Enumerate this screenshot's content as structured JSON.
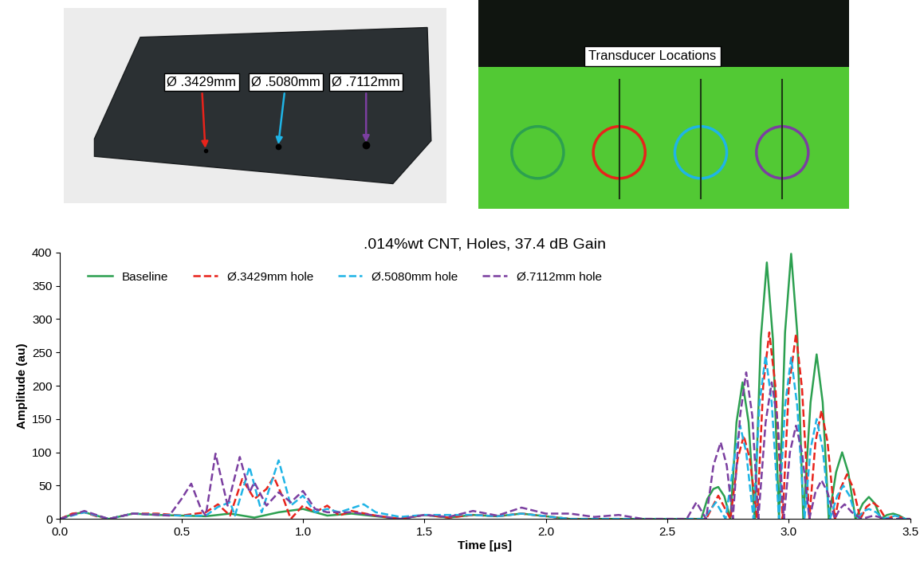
{
  "chart_data": {
    "type": "line",
    "title": ".014%wt CNT, Holes, 37.4 dB Gain",
    "x_label": "Time [μs]",
    "y_label": "Amplitude (au)",
    "xlim": [
      0,
      3.5
    ],
    "ylim": [
      0,
      400
    ],
    "xticks": [
      {
        "value": 0,
        "label": "0.0"
      },
      0.5,
      {
        "value": 1,
        "label": "1.0"
      },
      1.5,
      {
        "value": 2,
        "label": "2.0"
      },
      2.5,
      {
        "value": 3,
        "label": "3.0"
      },
      3.5
    ],
    "yticks": [
      0,
      50,
      100,
      150,
      200,
      250,
      300,
      350,
      400
    ],
    "grid": false,
    "legend": "upper left",
    "series": [
      {
        "name": "Baseline",
        "color": "#2ca050",
        "line_style": "solid",
        "x": [
          0,
          0.05,
          0.1,
          0.15,
          0.2,
          0.3,
          0.4,
          0.5,
          0.6,
          0.7,
          0.8,
          0.9,
          1.0,
          1.1,
          1.2,
          1.3,
          1.4,
          1.5,
          1.6,
          1.7,
          1.8,
          1.9,
          2.0,
          2.1,
          2.6,
          2.64,
          2.665,
          2.69,
          2.71,
          2.735,
          2.76,
          2.785,
          2.81,
          2.835,
          2.86,
          2.885,
          2.91,
          2.935,
          2.96,
          2.985,
          3.01,
          3.035,
          3.06,
          3.09,
          3.115,
          3.14,
          3.165,
          3.195,
          3.22,
          3.245,
          3.275,
          3.305,
          3.33,
          3.355,
          3.38,
          3.405,
          3.43,
          3.455,
          3.48,
          3.5
        ],
        "values": [
          0,
          7,
          10,
          5,
          0,
          8,
          6,
          5,
          4,
          8,
          2,
          10,
          15,
          5,
          8,
          4,
          0,
          6,
          2,
          6,
          4,
          8,
          4,
          0,
          0,
          0,
          30,
          45,
          48,
          34,
          0,
          145,
          205,
          145,
          0,
          270,
          385,
          270,
          0,
          280,
          398,
          280,
          0,
          175,
          247,
          175,
          0,
          70,
          100,
          70,
          0,
          23,
          33,
          23,
          0,
          6,
          8,
          5,
          0,
          0
        ]
      },
      {
        "name": "Ø.3429mm hole",
        "color": "#e8231b",
        "line_style": "dashed",
        "x": [
          0,
          0.05,
          0.1,
          0.15,
          0.2,
          0.3,
          0.4,
          0.5,
          0.6,
          0.65,
          0.7,
          0.75,
          0.8,
          0.85,
          0.88,
          0.92,
          0.95,
          1.0,
          1.05,
          1.1,
          1.15,
          1.2,
          1.3,
          1.4,
          1.5,
          1.6,
          1.7,
          1.8,
          1.9,
          2.0,
          2.1,
          2.6,
          2.66,
          2.71,
          2.76,
          2.79,
          2.815,
          2.84,
          2.87,
          2.895,
          2.92,
          2.945,
          2.975,
          3.0,
          3.03,
          3.055,
          3.085,
          3.11,
          3.135,
          3.16,
          3.19,
          3.215,
          3.24,
          3.265,
          3.295,
          3.32,
          3.345,
          3.37,
          3.4,
          3.44,
          3.48,
          3.5
        ],
        "values": [
          0,
          8,
          10,
          4,
          0,
          8,
          8,
          5,
          10,
          22,
          5,
          60,
          30,
          45,
          63,
          30,
          0,
          20,
          10,
          20,
          5,
          12,
          5,
          0,
          6,
          2,
          6,
          4,
          8,
          4,
          0,
          0,
          0,
          35,
          0,
          90,
          125,
          90,
          0,
          200,
          280,
          200,
          0,
          195,
          278,
          195,
          0,
          115,
          163,
          115,
          0,
          47,
          67,
          47,
          0,
          18,
          25,
          18,
          0,
          5,
          0,
          0
        ]
      },
      {
        "name": "Ø.5080mm hole",
        "color": "#1fb4e6",
        "line_style": "dashed",
        "x": [
          0,
          0.1,
          0.2,
          0.3,
          0.5,
          0.6,
          0.65,
          0.7,
          0.72,
          0.78,
          0.83,
          0.9,
          0.95,
          1.0,
          1.05,
          1.1,
          1.15,
          1.25,
          1.3,
          1.4,
          1.5,
          1.7,
          1.8,
          1.9,
          2.0,
          2.1,
          2.6,
          2.65,
          2.7,
          2.74,
          2.78,
          2.8,
          2.825,
          2.855,
          2.88,
          2.905,
          2.93,
          2.96,
          2.985,
          3.01,
          3.035,
          3.065,
          3.09,
          3.115,
          3.14,
          3.17,
          3.2,
          3.225,
          3.25,
          3.28,
          3.31,
          3.33,
          3.36,
          3.39,
          3.44,
          3.48,
          3.5
        ],
        "values": [
          0,
          10,
          0,
          8,
          5,
          5,
          18,
          25,
          5,
          78,
          10,
          88,
          20,
          35,
          10,
          15,
          10,
          22,
          10,
          3,
          6,
          6,
          4,
          8,
          4,
          0,
          0,
          0,
          25,
          0,
          100,
          140,
          100,
          0,
          175,
          245,
          175,
          0,
          170,
          242,
          170,
          0,
          105,
          150,
          105,
          0,
          35,
          50,
          35,
          0,
          12,
          15,
          10,
          0,
          5,
          0,
          0
        ]
      },
      {
        "name": "Ø.7112mm hole",
        "color": "#7b3fa0",
        "line_style": "dashed",
        "x": [
          0,
          0.1,
          0.2,
          0.3,
          0.45,
          0.5,
          0.54,
          0.58,
          0.6,
          0.64,
          0.69,
          0.74,
          0.78,
          0.8,
          0.85,
          0.9,
          0.95,
          1.0,
          1.05,
          1.1,
          1.2,
          1.3,
          1.4,
          1.5,
          1.6,
          1.7,
          1.8,
          1.9,
          2.0,
          2.1,
          2.2,
          2.3,
          2.4,
          2.55,
          2.58,
          2.62,
          2.66,
          2.69,
          2.72,
          2.745,
          2.77,
          2.8,
          2.825,
          2.85,
          2.875,
          2.905,
          2.93,
          2.955,
          2.98,
          3.005,
          3.03,
          3.055,
          3.085,
          3.11,
          3.135,
          3.16,
          3.19,
          3.21,
          3.23,
          3.26,
          3.3,
          3.35,
          3.4,
          3.5
        ],
        "values": [
          0,
          12,
          0,
          8,
          5,
          30,
          53,
          15,
          5,
          98,
          20,
          93,
          40,
          55,
          20,
          40,
          25,
          42,
          15,
          10,
          10,
          5,
          0,
          6,
          3,
          12,
          5,
          17,
          8,
          8,
          3,
          6,
          0,
          0,
          0,
          25,
          0,
          80,
          115,
          80,
          0,
          155,
          220,
          155,
          0,
          145,
          205,
          145,
          0,
          100,
          140,
          100,
          0,
          40,
          58,
          40,
          0,
          15,
          22,
          10,
          0,
          5,
          0,
          0
        ]
      }
    ]
  },
  "photos": {
    "hole_labels": [
      "Ø .3429mm",
      "Ø .5080mm",
      "Ø .7112mm"
    ],
    "transducer_label": "Transducer Locations"
  }
}
